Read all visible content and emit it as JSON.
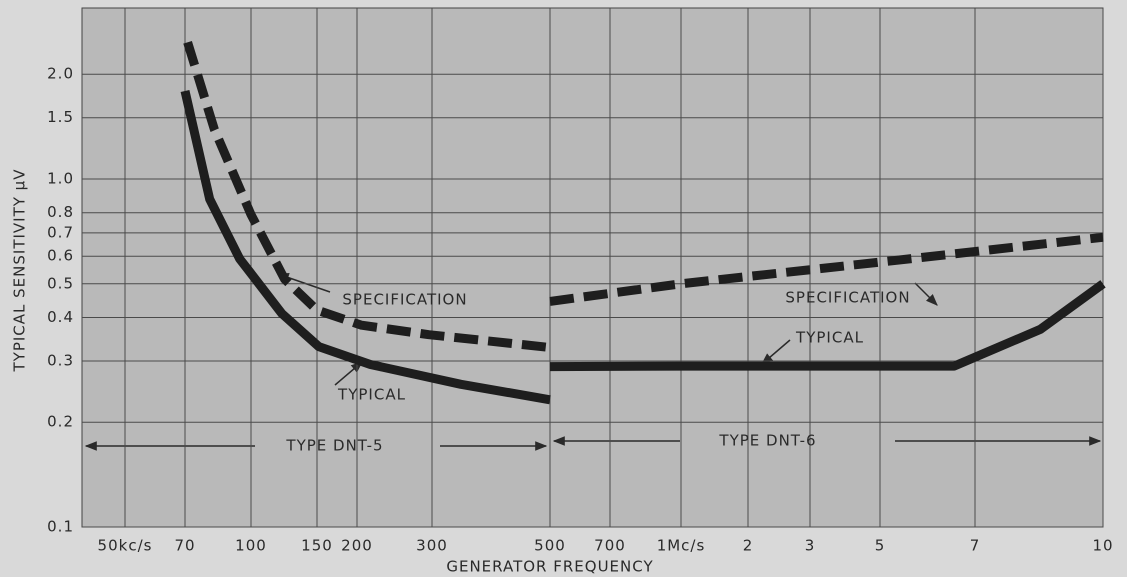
{
  "chart_data": {
    "type": "line",
    "ylabel": "TYPICAL SENSITIVITY µV",
    "xlabel": "GENERATOR FREQUENCY",
    "xlim": [
      40,
      10000
    ],
    "ylim": [
      0.1,
      3.1
    ],
    "ylog": true,
    "xlog": true,
    "grid": true,
    "xticks": [
      {
        "value": 50,
        "label": "50kc/s"
      },
      70,
      100,
      150,
      200,
      300,
      500,
      700,
      {
        "value": 1000,
        "label": "1Mc/s"
      },
      {
        "value": 2000,
        "label": "2"
      },
      {
        "value": 3000,
        "label": "3"
      },
      {
        "value": 5000,
        "label": "5"
      },
      {
        "value": 7000,
        "label": "7"
      },
      {
        "value": 10000,
        "label": "10"
      }
    ],
    "yticks": [
      0.1,
      0.2,
      0.3,
      0.4,
      0.5,
      0.6,
      0.7,
      0.8,
      {
        "value": 1,
        "label": "1.0"
      },
      1.5,
      {
        "value": 2,
        "label": "2.0"
      }
    ],
    "series": [
      {
        "color": "#1e1e1e",
        "dashed": true,
        "x": [
          71,
          82,
          100,
          123,
          150,
          205,
          295,
          500
        ],
        "values": [
          2.47,
          1.39,
          0.79,
          0.515,
          0.42,
          0.38,
          0.357,
          0.328
        ]
      },
      {
        "color": "#1e1e1e",
        "dashed": false,
        "x": [
          70,
          80,
          94,
          121,
          152,
          215,
          340,
          500
        ],
        "values": [
          1.79,
          0.875,
          0.59,
          0.41,
          0.33,
          0.293,
          0.257,
          0.232
        ]
      },
      {
        "color": "#1e1e1e",
        "dashed": true,
        "x": [
          500,
          1000,
          5000,
          10000
        ],
        "values": [
          0.445,
          0.5,
          0.577,
          0.68
        ]
      },
      {
        "color": "#1e1e1e",
        "dashed": false,
        "x": [
          500,
          1000,
          3000,
          6500,
          8400,
          10000
        ],
        "values": [
          0.289,
          0.29,
          0.29,
          0.29,
          0.37,
          0.5
        ]
      }
    ],
    "annotations": [
      "SPECIFICATION",
      "TYPICAL",
      "SPECIFICATION",
      "TYPICAL",
      "TYPE DNT-5",
      "TYPE DNT-6"
    ]
  }
}
